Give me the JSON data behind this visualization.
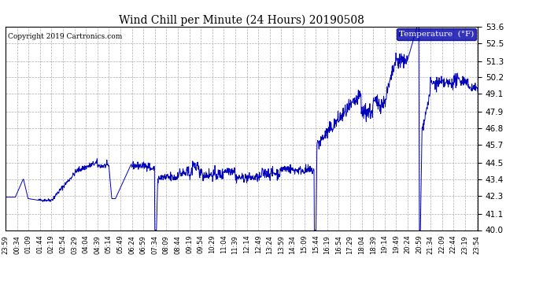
{
  "title": "Wind Chill per Minute (24 Hours) 20190508",
  "copyright": "Copyright 2019 Cartronics.com",
  "legend_label": "Temperature  (°F)",
  "ylim": [
    40.0,
    53.6
  ],
  "yticks": [
    40.0,
    41.1,
    42.3,
    43.4,
    44.5,
    45.7,
    46.8,
    47.9,
    49.1,
    50.2,
    51.3,
    52.5,
    53.6
  ],
  "xtick_labels": [
    "23:59",
    "00:34",
    "01:09",
    "01:44",
    "02:19",
    "02:54",
    "03:29",
    "04:04",
    "04:39",
    "05:14",
    "05:49",
    "06:24",
    "06:59",
    "07:34",
    "08:09",
    "08:44",
    "09:19",
    "09:54",
    "10:29",
    "11:04",
    "11:39",
    "12:14",
    "12:49",
    "13:24",
    "13:59",
    "14:34",
    "15:09",
    "15:44",
    "16:19",
    "16:54",
    "17:29",
    "18:04",
    "18:39",
    "19:14",
    "19:49",
    "20:24",
    "20:59",
    "21:34",
    "22:09",
    "22:44",
    "23:19",
    "23:54"
  ],
  "background_color": "#FFFFFF",
  "plot_bg_color": "#FFFFFF",
  "line_color": "#0000BB",
  "grid_color": "#999999",
  "title_color": "#000000",
  "legend_bg": "#0000AA",
  "legend_text_color": "#FFFFFF",
  "figsize": [
    6.9,
    3.75
  ],
  "dpi": 100
}
